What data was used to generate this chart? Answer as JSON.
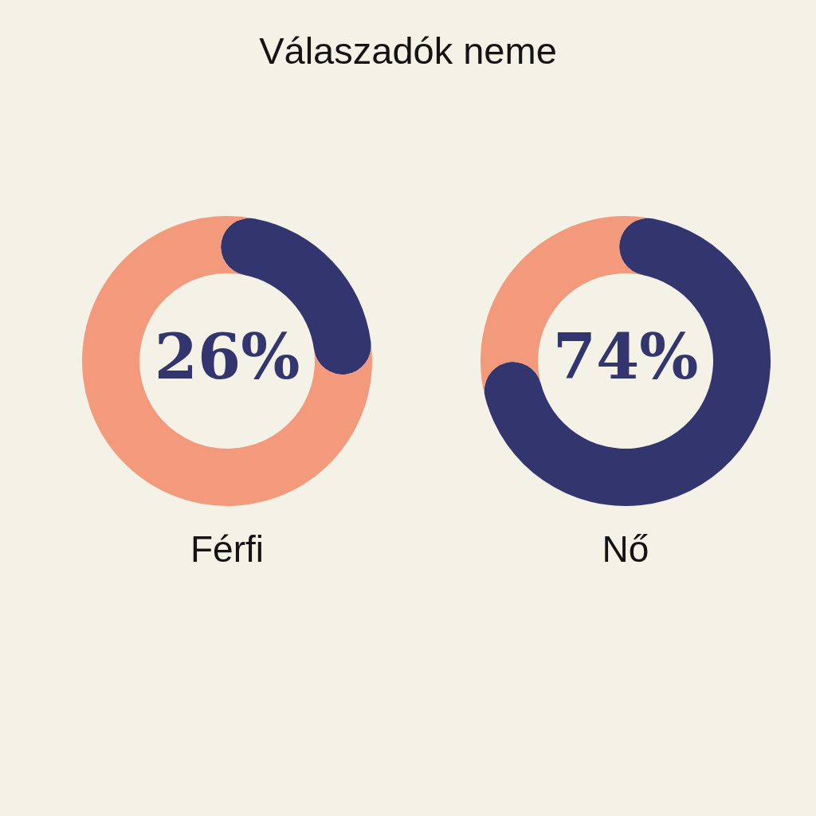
{
  "chart_data": [
    {
      "type": "other",
      "title": "Válaszadók neme"
    },
    {
      "type": "donut",
      "title": "Férfi",
      "categories": [
        null,
        null
      ],
      "values": [
        26,
        74
      ],
      "colors": [
        "#32356e",
        "#f29a7b"
      ],
      "value_labels": [
        "26%",
        null
      ]
    },
    {
      "type": "donut",
      "title": "Nő",
      "categories": [
        null,
        null
      ],
      "values": [
        74,
        26
      ],
      "colors": [
        "#32356e",
        "#f29a7b"
      ],
      "value_labels": [
        "74%",
        null
      ]
    }
  ]
}
